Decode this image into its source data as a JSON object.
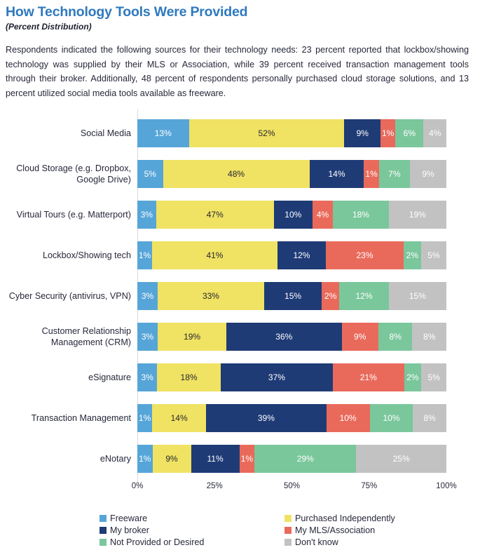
{
  "header": {
    "title": "How Technology Tools Were Provided",
    "subtitle": "(Percent Distribution)",
    "description": "Respondents indicated the following sources for their technology needs: 23 percent reported that lockbox/showing technology was supplied by their MLS or Association, while 39 percent received transaction management tools through their broker. Additionally, 48 percent of respondents personally purchased cloud storage solutions, and 13 percent utilized social media tools available as freeware."
  },
  "chart_data": {
    "type": "bar",
    "variant": "horizontal-stacked-percent",
    "title": "How Technology Tools Were Provided",
    "xlabel": "",
    "ylabel": "",
    "x_ticks": [
      "0%",
      "25%",
      "50%",
      "75%",
      "100%"
    ],
    "xlim": [
      0,
      100
    ],
    "grid": false,
    "legend_position": "bottom",
    "series_names": [
      "Freeware",
      "Purchased Independently",
      "My broker",
      "My MLS/Association",
      "Not Provided or Desired",
      "Don't know"
    ],
    "palette": [
      "#56a5d8",
      "#f0e263",
      "#1f3b76",
      "#e96a5b",
      "#7ac79c",
      "#c2c2c2"
    ],
    "label_colors": {
      "default": "#ffffff",
      "on_yellow": "#26272e"
    },
    "categories": [
      "Social Media",
      "Cloud Storage (e.g. Dropbox, Google Drive)",
      "Virtual Tours (e.g. Matterport)",
      "Lockbox/Showing tech",
      "Cyber Security (antivirus, VPN)",
      "Customer Relationship Management (CRM)",
      "eSignature",
      "Transaction Management",
      "eNotary"
    ],
    "rows": [
      {
        "category": "Social Media",
        "values": [
          13,
          52,
          9,
          1,
          6,
          4
        ]
      },
      {
        "category": "Cloud Storage (e.g. Dropbox, Google Drive)",
        "values": [
          5,
          48,
          14,
          1,
          7,
          9
        ]
      },
      {
        "category": "Virtual Tours (e.g. Matterport)",
        "values": [
          3,
          47,
          10,
          4,
          18,
          19
        ]
      },
      {
        "category": "Lockbox/Showing tech",
        "values": [
          1,
          41,
          12,
          23,
          2,
          5
        ]
      },
      {
        "category": "Cyber Security (antivirus, VPN)",
        "values": [
          3,
          33,
          15,
          2,
          12,
          15
        ]
      },
      {
        "category": "Customer Relationship Management (CRM)",
        "values": [
          3,
          19,
          36,
          9,
          8,
          8
        ]
      },
      {
        "category": "eSignature",
        "values": [
          3,
          18,
          37,
          21,
          2,
          5
        ]
      },
      {
        "category": "Transaction Management",
        "values": [
          1,
          14,
          39,
          10,
          10,
          8
        ]
      },
      {
        "category": "eNotary",
        "values": [
          1,
          9,
          11,
          1,
          29,
          25
        ]
      }
    ],
    "value_suffix": "%"
  },
  "legend": {
    "items": [
      {
        "label": "Freeware",
        "color": "#56a5d8"
      },
      {
        "label": "Purchased Independently",
        "color": "#f0e263"
      },
      {
        "label": "My broker",
        "color": "#1f3b76"
      },
      {
        "label": "My MLS/Association",
        "color": "#e96a5b"
      },
      {
        "label": "Not Provided or Desired",
        "color": "#7ac79c"
      },
      {
        "label": "Don't know",
        "color": "#c2c2c2"
      }
    ]
  }
}
